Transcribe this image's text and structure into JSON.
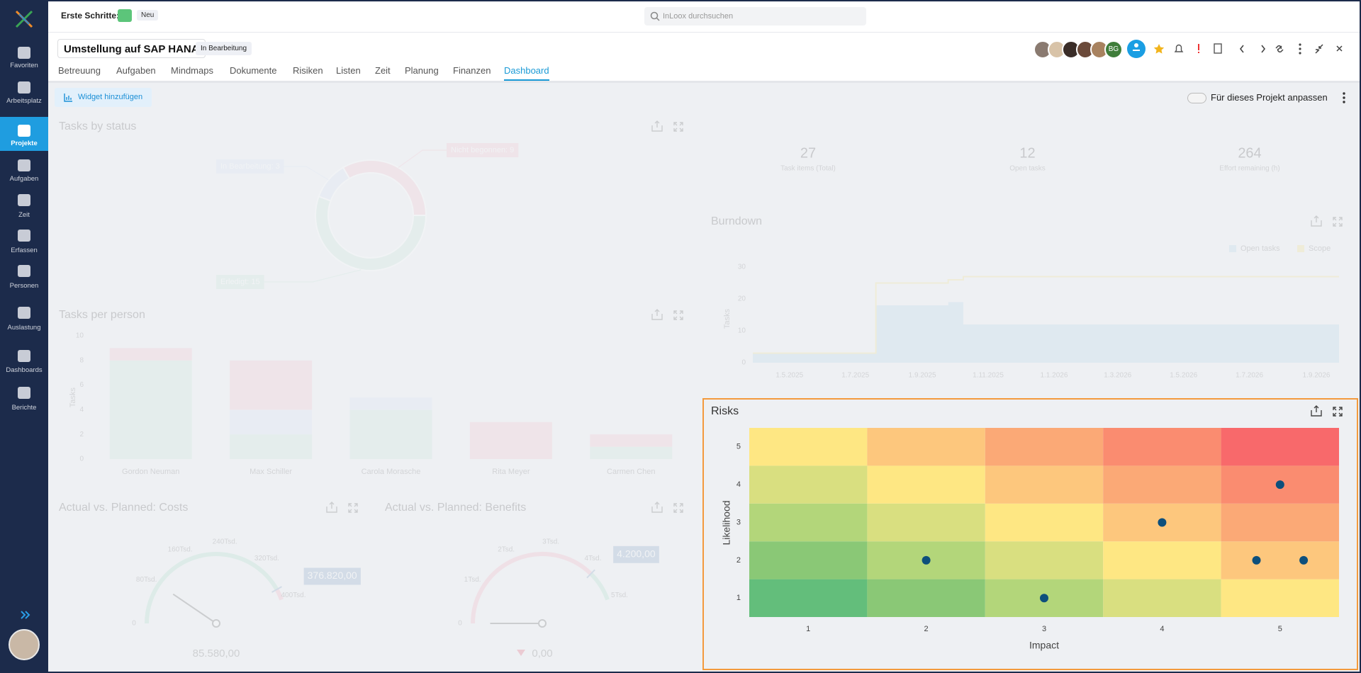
{
  "sidebar": {
    "items": [
      "Favoriten",
      "Arbeitsplatz",
      "Projekte",
      "Aufgaben",
      "Zeit",
      "Erfassen",
      "Personen",
      "Auslastung",
      "Dashboards",
      "Berichte"
    ],
    "active": 2
  },
  "topbar": {
    "first_steps": "Erste Schritte:",
    "badge": "Neu",
    "search": "InLoox durchsuchen"
  },
  "project": {
    "title": "Umstellung auf SAP HANA",
    "status": "In Bearbeitung",
    "avatar_initials": "BG",
    "tabs": [
      "Betreuung",
      "Aufgaben",
      "Mindmaps",
      "Dokumente",
      "Risiken",
      "Listen",
      "Zeit",
      "Planung",
      "Finanzen",
      "Dashboard"
    ],
    "active_tab": 9
  },
  "toolbar": {
    "add_widget": "Widget hinzufügen",
    "customize": "Für dieses Projekt anpassen"
  },
  "kpis": [
    {
      "value": 27,
      "label": "Task items (Total)"
    },
    {
      "value": 12,
      "label": "Open tasks"
    },
    {
      "value": 264,
      "label": "Effort remaining (h)"
    }
  ],
  "chart_data": [
    {
      "type": "donut",
      "title": "Tasks by status",
      "categories": [
        "Nicht begonnen: 9",
        "Erledigt: 15",
        "In Bearbeitung: 3"
      ],
      "values": [
        9,
        15,
        3
      ],
      "colors": [
        "#f4b6c4",
        "#bfe4d4",
        "#d5e1f4"
      ]
    },
    {
      "type": "stacked_bar",
      "title": "Tasks per person",
      "ylabel": "Tasks",
      "categories": [
        "Gordon Neuman",
        "Max Schiller",
        "Carola Morasche",
        "Rita Meyer",
        "Carmen Chen"
      ],
      "series": [
        {
          "color": "#bfe4d4",
          "values": [
            8,
            2,
            4,
            0,
            1
          ]
        },
        {
          "color": "#d5e1f4",
          "values": [
            0,
            2,
            1,
            0,
            0
          ]
        },
        {
          "color": "#f4b6c4",
          "values": [
            1,
            4,
            0,
            3,
            1
          ]
        }
      ],
      "ylim": [
        0,
        10
      ],
      "yticks": [
        0,
        2,
        4,
        6,
        8,
        10
      ]
    },
    {
      "type": "step_area",
      "title": "Burndown",
      "ylabel": "Tasks",
      "x": [
        "28.3.2025",
        "20.7.2025",
        "25.9.2025",
        "9.10.2025",
        "22.9.2026"
      ],
      "xlim": [
        "28.3.2025",
        "22.9.2026"
      ],
      "xticks": [
        "1.5.2025",
        "1.7.2025",
        "1.9.2025",
        "1.11.2025",
        "1.1.2026",
        "1.3.2026",
        "1.5.2026",
        "1.7.2026",
        "1.9.2026"
      ],
      "ylim": [
        0,
        30
      ],
      "yticks": [
        0,
        10,
        20,
        30
      ],
      "series": [
        {
          "name": "Open tasks",
          "color": "#a8cfe5",
          "values": [
            3,
            18,
            19,
            12,
            12
          ]
        },
        {
          "name": "Scope",
          "color": "#f5df72",
          "values": [
            3,
            25,
            26,
            27,
            27
          ]
        }
      ]
    },
    {
      "type": "gauge",
      "title": "Actual vs. Planned: Costs",
      "value": 85580,
      "value_label": "85.580,00",
      "target": 376820,
      "target_label": "376.820,00",
      "ylim": [
        0,
        400000
      ],
      "yticks": [
        0,
        {
          "value": 80000,
          "label": "80Tsd."
        },
        {
          "value": 160000,
          "label": "160Tsd."
        },
        {
          "value": 240000,
          "label": "240Tsd."
        },
        {
          "value": 320000,
          "label": "320Tsd."
        },
        {
          "value": 400000,
          "label": "400Tsd."
        }
      ],
      "colors": [
        "#9fdcc0",
        "#f4a3b6"
      ]
    },
    {
      "type": "gauge",
      "title": "Actual vs. Planned: Benefits",
      "value": 0,
      "value_label": "0,00",
      "target": 4200,
      "target_label": "4.200,00",
      "ylim": [
        0,
        5000
      ],
      "yticks": [
        0,
        {
          "value": 1000,
          "label": "1Tsd."
        },
        {
          "value": 2000,
          "label": "2Tsd."
        },
        {
          "value": 3000,
          "label": "3Tsd."
        },
        {
          "value": 4000,
          "label": "4Tsd."
        },
        {
          "value": 5000,
          "label": "5Tsd."
        }
      ],
      "colors": [
        "#f4a3b6",
        "#9fdcc0"
      ]
    },
    {
      "type": "risk_matrix",
      "title": "Risks",
      "xlabel": "Impact",
      "ylabel": "Likelihood",
      "xlim": [
        0.5,
        5.5
      ],
      "ylim": [
        0.5,
        5.5
      ],
      "xticks": [
        1,
        2,
        3,
        4,
        5
      ],
      "yticks": [
        1,
        2,
        3,
        4,
        5
      ],
      "cell_colors": [
        [
          "#63be7b",
          "#8ac876",
          "#b3d67a",
          "#d9df80",
          "#fee783"
        ],
        [
          "#8ac876",
          "#b3d67a",
          "#d9df80",
          "#fee783",
          "#fdc77d"
        ],
        [
          "#b3d67a",
          "#d9df80",
          "#fee783",
          "#fdc77d",
          "#fba976"
        ],
        [
          "#d9df80",
          "#fee783",
          "#fdc77d",
          "#fba976",
          "#fa8c70"
        ],
        [
          "#fee783",
          "#fdc77d",
          "#fba976",
          "#fa8c70",
          "#f8696b"
        ]
      ],
      "x": [
        2,
        3,
        4,
        5,
        5,
        5
      ],
      "y": [
        2,
        1,
        3,
        4,
        2,
        2
      ],
      "color": "#0d4f7c"
    }
  ]
}
